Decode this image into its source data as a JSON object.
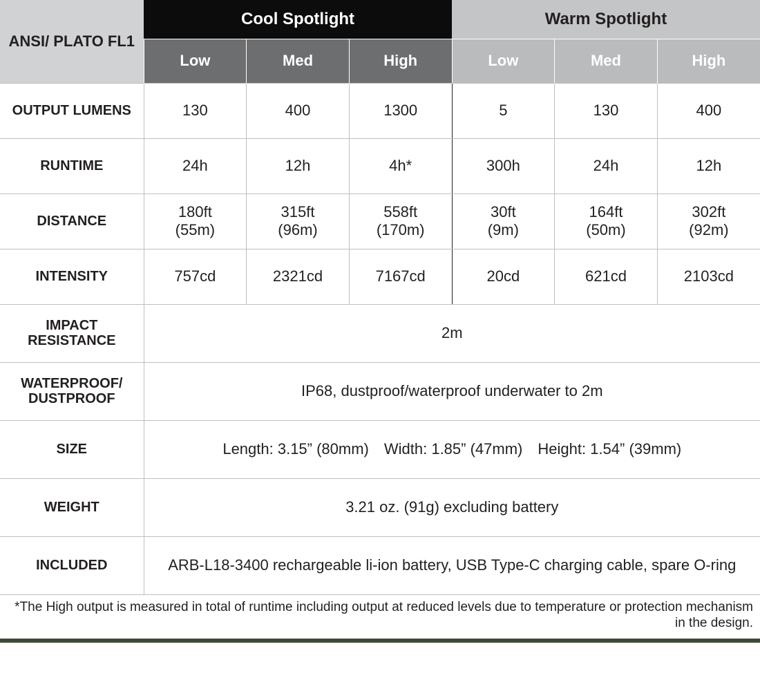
{
  "corner_label": "ANSI/\nPLATO FL1",
  "group_headers": {
    "cool": "Cool Spotlight",
    "warm": "Warm Spotlight"
  },
  "sub_headers": {
    "low": "Low",
    "med": "Med",
    "high": "High"
  },
  "rows": [
    {
      "label": "OUTPUT\nLUMENS",
      "cool": {
        "low": "130",
        "med": "400",
        "high": "1300"
      },
      "warm": {
        "low": "5",
        "med": "130",
        "high": "400"
      }
    },
    {
      "label": "RUNTIME",
      "cool": {
        "low": "24h",
        "med": "12h",
        "high": "4h*"
      },
      "warm": {
        "low": "300h",
        "med": "24h",
        "high": "12h"
      }
    },
    {
      "label": "DISTANCE",
      "cool": {
        "low": "180ft\n(55m)",
        "med": "315ft\n(96m)",
        "high": "558ft\n(170m)"
      },
      "warm": {
        "low": "30ft\n(9m)",
        "med": "164ft\n(50m)",
        "high": "302ft\n(92m)"
      }
    },
    {
      "label": "INTENSITY",
      "cool": {
        "low": "757cd",
        "med": "2321cd",
        "high": "7167cd"
      },
      "warm": {
        "low": "20cd",
        "med": "621cd",
        "high": "2103cd"
      }
    }
  ],
  "span_rows": [
    {
      "label": "IMPACT\nRESISTANCE",
      "value": "2m"
    },
    {
      "label": "WATERPROOF/\nDUSTPROOF",
      "value": "IP68, dustproof/waterproof underwater to 2m"
    },
    {
      "label": "SIZE",
      "value": "Length: 3.15” (80mm) Width: 1.85” (47mm) Height: 1.54” (39mm)"
    },
    {
      "label": "WEIGHT",
      "value": "3.21 oz. (91g) excluding battery"
    },
    {
      "label": "INCLUDED",
      "value": "ARB-L18-3400 rechargeable li-ion battery, USB Type-C charging cable, spare O-ring"
    }
  ],
  "footnote": "*The High output is measured in total of runtime including output at reduced levels due to temperature or protection mechanism in the design.",
  "colors": {
    "corner_bg": "#d1d2d3",
    "cool_header_bg": "#0c0c0c",
    "warm_header_bg": "#c4c5c6",
    "cool_sub_bg": "#6d6e70",
    "warm_sub_bg": "#babbbc",
    "border": "#bfbfbf",
    "text": "#231f20",
    "bottom_bar": "#3f4b34"
  }
}
